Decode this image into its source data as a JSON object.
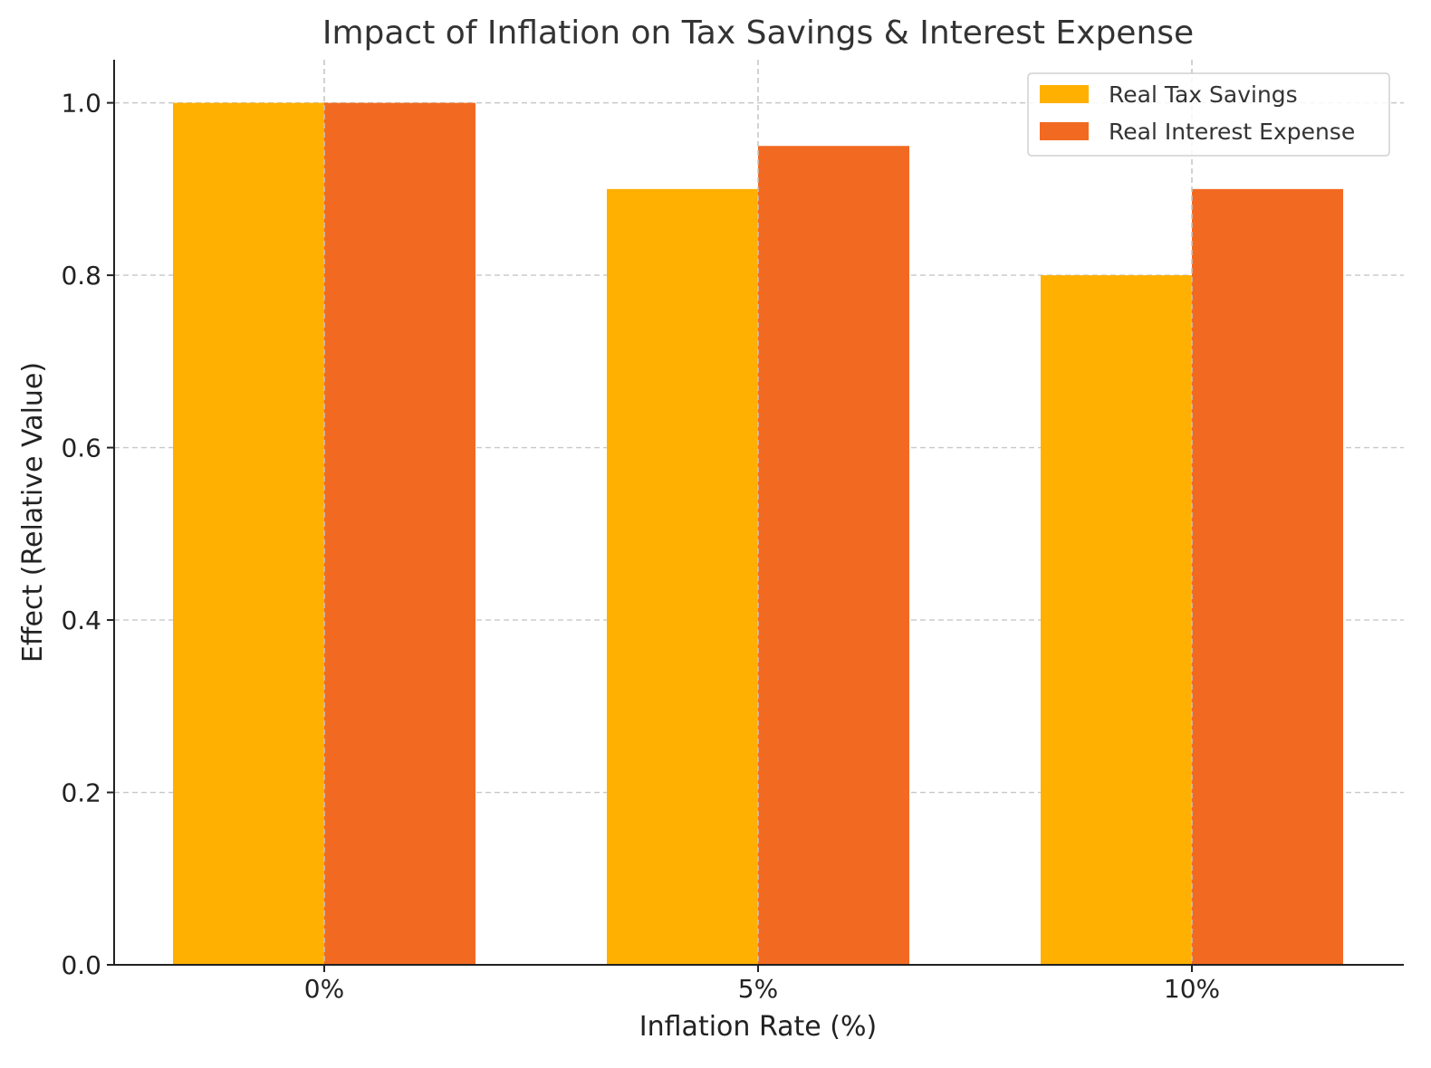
{
  "chart_data": {
    "type": "bar",
    "title": "Impact of Inflation on Tax Savings & Interest Expense",
    "xlabel": "Inflation Rate (%)",
    "ylabel": "Effect (Relative Value)",
    "categories": [
      "0%",
      "5%",
      "10%"
    ],
    "series": [
      {
        "name": "Real Tax Savings",
        "values": [
          1.0,
          0.9,
          0.8
        ],
        "color": "#FFB000"
      },
      {
        "name": "Real Interest Expense",
        "values": [
          1.0,
          0.95,
          0.9
        ],
        "color": "#F26A22"
      }
    ],
    "ylim": [
      0,
      1.05
    ],
    "yticks": [
      "0.0",
      "0.2",
      "0.4",
      "0.6",
      "0.8",
      "1.0"
    ],
    "grid": true,
    "legend_position": "top-right"
  }
}
